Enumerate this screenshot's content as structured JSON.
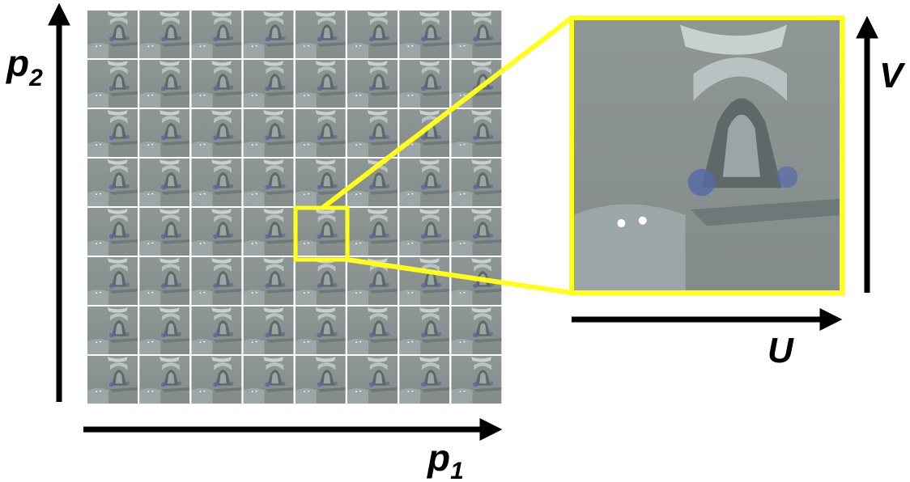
{
  "axes": {
    "p2": {
      "base": "p",
      "sub": "2"
    },
    "p1": {
      "base": "p",
      "sub": "1"
    },
    "v": {
      "label": "V"
    },
    "u": {
      "label": "U"
    }
  }
}
